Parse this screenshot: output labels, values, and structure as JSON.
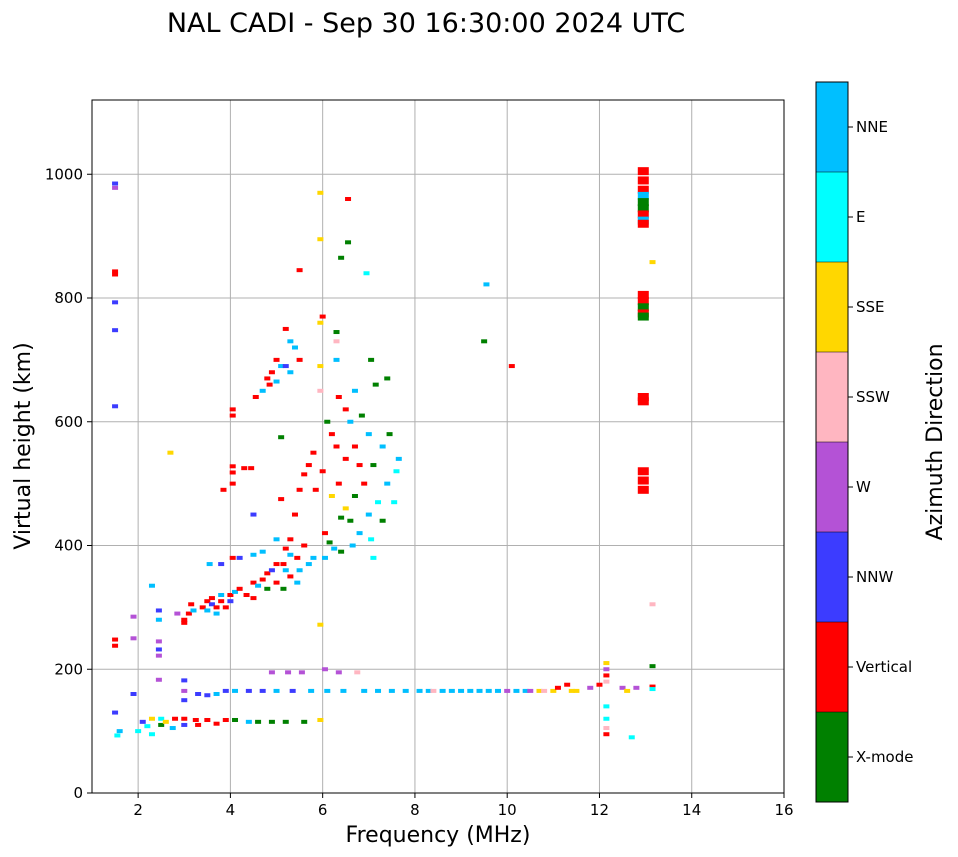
{
  "chart_data": {
    "type": "scatter",
    "title": "NAL CADI - Sep 30 16:30:00 2024 UTC",
    "xlabel": "Frequency (MHz)",
    "ylabel": "Virtual height (km)",
    "xlim": [
      1,
      16
    ],
    "ylim": [
      0,
      1120
    ],
    "xticks": [
      2,
      4,
      6,
      8,
      10,
      12,
      14,
      16
    ],
    "xtick_labels": [
      "2",
      "4",
      "6",
      "8",
      "10",
      "12",
      "14",
      "16"
    ],
    "yticks": [
      0,
      200,
      400,
      600,
      800,
      1000
    ],
    "ytick_labels": [
      "0",
      "200",
      "400",
      "600",
      "800",
      "1000"
    ],
    "grid": true,
    "colorbar": {
      "label": "Azimuth Direction",
      "categories": [
        "X-mode",
        "Vertical",
        "NNW",
        "W",
        "SSW",
        "SSE",
        "E",
        "NNE"
      ],
      "colors": [
        "#008000",
        "#ff0000",
        "#3c3cff",
        "#b452d6",
        "#ffb6c1",
        "#ffd700",
        "#00ffff",
        "#00bfff"
      ]
    },
    "points": [
      [
        1.5,
        985,
        "NNW"
      ],
      [
        1.5,
        978,
        "W"
      ],
      [
        1.5,
        843,
        "Vertical"
      ],
      [
        1.5,
        838,
        "Vertical"
      ],
      [
        1.5,
        793,
        "NNW"
      ],
      [
        1.5,
        748,
        "NNW"
      ],
      [
        1.5,
        625,
        "NNW"
      ],
      [
        1.5,
        248,
        "Vertical"
      ],
      [
        1.5,
        238,
        "Vertical"
      ],
      [
        1.5,
        130,
        "NNW"
      ],
      [
        1.6,
        100,
        "NNE"
      ],
      [
        1.55,
        93,
        "E"
      ],
      [
        1.9,
        285,
        "W"
      ],
      [
        1.9,
        250,
        "W"
      ],
      [
        1.9,
        160,
        "NNW"
      ],
      [
        2.0,
        100,
        "E"
      ],
      [
        2.1,
        115,
        "NNW"
      ],
      [
        2.2,
        108,
        "E"
      ],
      [
        2.3,
        120,
        "SSE"
      ],
      [
        2.3,
        95,
        "E"
      ],
      [
        2.3,
        335,
        "NNE"
      ],
      [
        2.45,
        295,
        "NNW"
      ],
      [
        2.45,
        280,
        "NNE"
      ],
      [
        2.45,
        245,
        "W"
      ],
      [
        2.45,
        232,
        "NNW"
      ],
      [
        2.45,
        222,
        "W"
      ],
      [
        2.45,
        183,
        "W"
      ],
      [
        2.5,
        120,
        "E"
      ],
      [
        2.5,
        110,
        "X-mode"
      ],
      [
        2.6,
        115,
        "SSE"
      ],
      [
        2.7,
        550,
        "SSE"
      ],
      [
        2.75,
        105,
        "NNE"
      ],
      [
        2.8,
        120,
        "Vertical"
      ],
      [
        2.85,
        290,
        "W"
      ],
      [
        3.0,
        280,
        "Vertical"
      ],
      [
        3.0,
        275,
        "Vertical"
      ],
      [
        3.0,
        182,
        "NNW"
      ],
      [
        3.0,
        165,
        "W"
      ],
      [
        3.0,
        150,
        "NNW"
      ],
      [
        3.0,
        120,
        "Vertical"
      ],
      [
        3.0,
        110,
        "NNW"
      ],
      [
        3.1,
        290,
        "Vertical"
      ],
      [
        3.15,
        305,
        "Vertical"
      ],
      [
        3.2,
        295,
        "NNE"
      ],
      [
        3.25,
        118,
        "Vertical"
      ],
      [
        3.3,
        110,
        "Vertical"
      ],
      [
        3.3,
        160,
        "NNW"
      ],
      [
        3.4,
        300,
        "Vertical"
      ],
      [
        3.5,
        310,
        "Vertical"
      ],
      [
        3.5,
        295,
        "NNE"
      ],
      [
        3.5,
        158,
        "NNW"
      ],
      [
        3.5,
        118,
        "Vertical"
      ],
      [
        3.55,
        370,
        "NNE"
      ],
      [
        3.6,
        315,
        "Vertical"
      ],
      [
        3.6,
        305,
        "NNW"
      ],
      [
        3.7,
        300,
        "Vertical"
      ],
      [
        3.7,
        290,
        "NNE"
      ],
      [
        3.7,
        160,
        "NNE"
      ],
      [
        3.7,
        112,
        "Vertical"
      ],
      [
        3.8,
        320,
        "NNE"
      ],
      [
        3.8,
        310,
        "Vertical"
      ],
      [
        3.8,
        370,
        "NNW"
      ],
      [
        3.85,
        490,
        "Vertical"
      ],
      [
        3.9,
        300,
        "Vertical"
      ],
      [
        3.9,
        165,
        "NNW"
      ],
      [
        3.9,
        118,
        "Vertical"
      ],
      [
        4.0,
        320,
        "Vertical"
      ],
      [
        4.0,
        310,
        "NNW"
      ],
      [
        4.05,
        620,
        "Vertical"
      ],
      [
        4.05,
        610,
        "Vertical"
      ],
      [
        4.05,
        528,
        "Vertical"
      ],
      [
        4.05,
        518,
        "Vertical"
      ],
      [
        4.05,
        500,
        "Vertical"
      ],
      [
        4.05,
        380,
        "Vertical"
      ],
      [
        4.1,
        325,
        "NNE"
      ],
      [
        4.1,
        165,
        "NNE"
      ],
      [
        4.1,
        118,
        "X-mode"
      ],
      [
        4.2,
        330,
        "Vertical"
      ],
      [
        4.2,
        380,
        "NNW"
      ],
      [
        4.3,
        525,
        "Vertical"
      ],
      [
        4.35,
        320,
        "Vertical"
      ],
      [
        4.4,
        165,
        "NNW"
      ],
      [
        4.4,
        115,
        "NNE"
      ],
      [
        4.45,
        525,
        "Vertical"
      ],
      [
        4.5,
        385,
        "NNE"
      ],
      [
        4.5,
        340,
        "Vertical"
      ],
      [
        4.5,
        315,
        "Vertical"
      ],
      [
        4.5,
        450,
        "NNW"
      ],
      [
        4.55,
        640,
        "Vertical"
      ],
      [
        4.6,
        335,
        "NNE"
      ],
      [
        4.6,
        115,
        "X-mode"
      ],
      [
        4.7,
        650,
        "NNE"
      ],
      [
        4.7,
        390,
        "NNE"
      ],
      [
        4.7,
        345,
        "Vertical"
      ],
      [
        4.7,
        165,
        "NNW"
      ],
      [
        4.8,
        670,
        "Vertical"
      ],
      [
        4.8,
        355,
        "Vertical"
      ],
      [
        4.8,
        330,
        "X-mode"
      ],
      [
        4.85,
        660,
        "Vertical"
      ],
      [
        4.9,
        680,
        "Vertical"
      ],
      [
        4.9,
        360,
        "NNW"
      ],
      [
        4.9,
        195,
        "W"
      ],
      [
        4.9,
        115,
        "X-mode"
      ],
      [
        5.0,
        700,
        "Vertical"
      ],
      [
        5.0,
        665,
        "NNE"
      ],
      [
        5.0,
        410,
        "NNE"
      ],
      [
        5.0,
        370,
        "Vertical"
      ],
      [
        5.0,
        340,
        "Vertical"
      ],
      [
        5.0,
        165,
        "NNE"
      ],
      [
        5.1,
        690,
        "NNE"
      ],
      [
        5.1,
        575,
        "X-mode"
      ],
      [
        5.1,
        475,
        "Vertical"
      ],
      [
        5.15,
        370,
        "Vertical"
      ],
      [
        5.15,
        330,
        "X-mode"
      ],
      [
        5.2,
        750,
        "Vertical"
      ],
      [
        5.2,
        690,
        "NNW"
      ],
      [
        5.2,
        395,
        "Vertical"
      ],
      [
        5.2,
        360,
        "NNE"
      ],
      [
        5.2,
        115,
        "X-mode"
      ],
      [
        5.25,
        195,
        "W"
      ],
      [
        5.3,
        730,
        "NNE"
      ],
      [
        5.3,
        680,
        "NNE"
      ],
      [
        5.3,
        410,
        "Vertical"
      ],
      [
        5.3,
        385,
        "NNE"
      ],
      [
        5.3,
        350,
        "Vertical"
      ],
      [
        5.35,
        165,
        "NNW"
      ],
      [
        5.4,
        720,
        "NNE"
      ],
      [
        5.4,
        450,
        "Vertical"
      ],
      [
        5.45,
        380,
        "Vertical"
      ],
      [
        5.45,
        340,
        "NNE"
      ],
      [
        5.5,
        700,
        "Vertical"
      ],
      [
        5.5,
        845,
        "Vertical"
      ],
      [
        5.5,
        490,
        "Vertical"
      ],
      [
        5.5,
        360,
        "NNE"
      ],
      [
        5.55,
        195,
        "W"
      ],
      [
        5.6,
        515,
        "Vertical"
      ],
      [
        5.6,
        400,
        "Vertical"
      ],
      [
        5.6,
        115,
        "X-mode"
      ],
      [
        5.7,
        530,
        "Vertical"
      ],
      [
        5.7,
        370,
        "NNE"
      ],
      [
        5.75,
        165,
        "NNE"
      ],
      [
        5.8,
        550,
        "Vertical"
      ],
      [
        5.8,
        380,
        "NNE"
      ],
      [
        5.85,
        490,
        "Vertical"
      ],
      [
        5.95,
        970,
        "SSE"
      ],
      [
        5.95,
        895,
        "SSE"
      ],
      [
        5.95,
        760,
        "SSE"
      ],
      [
        5.95,
        690,
        "SSE"
      ],
      [
        5.95,
        650,
        "SSW"
      ],
      [
        5.95,
        272,
        "SSE"
      ],
      [
        5.95,
        118,
        "SSE"
      ],
      [
        6.0,
        770,
        "Vertical"
      ],
      [
        6.0,
        520,
        "Vertical"
      ],
      [
        6.05,
        420,
        "Vertical"
      ],
      [
        6.05,
        380,
        "NNE"
      ],
      [
        6.05,
        200,
        "W"
      ],
      [
        6.1,
        165,
        "NNE"
      ],
      [
        6.1,
        600,
        "X-mode"
      ],
      [
        6.15,
        405,
        "X-mode"
      ],
      [
        6.2,
        580,
        "Vertical"
      ],
      [
        6.2,
        480,
        "SSE"
      ],
      [
        6.25,
        395,
        "NNE"
      ],
      [
        6.3,
        745,
        "X-mode"
      ],
      [
        6.3,
        730,
        "SSW"
      ],
      [
        6.3,
        700,
        "NNE"
      ],
      [
        6.3,
        560,
        "Vertical"
      ],
      [
        6.35,
        640,
        "Vertical"
      ],
      [
        6.35,
        500,
        "Vertical"
      ],
      [
        6.35,
        195,
        "W"
      ],
      [
        6.4,
        865,
        "X-mode"
      ],
      [
        6.4,
        445,
        "X-mode"
      ],
      [
        6.4,
        390,
        "X-mode"
      ],
      [
        6.45,
        165,
        "NNE"
      ],
      [
        6.5,
        620,
        "Vertical"
      ],
      [
        6.5,
        540,
        "Vertical"
      ],
      [
        6.5,
        460,
        "SSE"
      ],
      [
        6.55,
        960,
        "Vertical"
      ],
      [
        6.55,
        890,
        "X-mode"
      ],
      [
        6.6,
        600,
        "NNE"
      ],
      [
        6.6,
        440,
        "X-mode"
      ],
      [
        6.65,
        400,
        "NNE"
      ],
      [
        6.7,
        650,
        "NNE"
      ],
      [
        6.7,
        560,
        "Vertical"
      ],
      [
        6.7,
        480,
        "X-mode"
      ],
      [
        6.75,
        195,
        "SSW"
      ],
      [
        6.8,
        530,
        "Vertical"
      ],
      [
        6.8,
        420,
        "NNE"
      ],
      [
        6.85,
        610,
        "X-mode"
      ],
      [
        6.9,
        500,
        "Vertical"
      ],
      [
        6.9,
        165,
        "NNE"
      ],
      [
        6.95,
        840,
        "E"
      ],
      [
        7.0,
        580,
        "NNE"
      ],
      [
        7.0,
        450,
        "NNE"
      ],
      [
        7.05,
        700,
        "X-mode"
      ],
      [
        7.05,
        410,
        "E"
      ],
      [
        7.1,
        530,
        "X-mode"
      ],
      [
        7.1,
        380,
        "E"
      ],
      [
        7.15,
        660,
        "X-mode"
      ],
      [
        7.2,
        470,
        "E"
      ],
      [
        7.2,
        165,
        "NNE"
      ],
      [
        7.3,
        560,
        "NNE"
      ],
      [
        7.3,
        440,
        "X-mode"
      ],
      [
        7.4,
        500,
        "NNE"
      ],
      [
        7.4,
        670,
        "X-mode"
      ],
      [
        7.45,
        580,
        "X-mode"
      ],
      [
        7.5,
        165,
        "NNE"
      ],
      [
        7.55,
        470,
        "E"
      ],
      [
        7.6,
        520,
        "E"
      ],
      [
        7.65,
        540,
        "NNE"
      ],
      [
        7.8,
        165,
        "NNE"
      ],
      [
        8.1,
        165,
        "NNE"
      ],
      [
        8.3,
        165,
        "NNE"
      ],
      [
        8.4,
        165,
        "SSW"
      ],
      [
        8.6,
        165,
        "NNE"
      ],
      [
        8.8,
        165,
        "NNE"
      ],
      [
        9.0,
        165,
        "NNE"
      ],
      [
        9.2,
        165,
        "NNE"
      ],
      [
        9.4,
        165,
        "NNE"
      ],
      [
        9.6,
        165,
        "NNE"
      ],
      [
        9.55,
        822,
        "NNE"
      ],
      [
        9.5,
        730,
        "X-mode"
      ],
      [
        9.8,
        165,
        "NNE"
      ],
      [
        10.0,
        165,
        "W"
      ],
      [
        10.1,
        690,
        "Vertical"
      ],
      [
        10.2,
        165,
        "NNE"
      ],
      [
        10.4,
        165,
        "NNE"
      ],
      [
        10.5,
        165,
        "W"
      ],
      [
        10.7,
        165,
        "SSE"
      ],
      [
        10.8,
        165,
        "SSW"
      ],
      [
        11.0,
        165,
        "SSE"
      ],
      [
        11.1,
        170,
        "Vertical"
      ],
      [
        11.3,
        175,
        "Vertical"
      ],
      [
        11.4,
        165,
        "SSE"
      ],
      [
        11.5,
        165,
        "SSE"
      ],
      [
        11.8,
        170,
        "W"
      ],
      [
        12.0,
        175,
        "Vertical"
      ],
      [
        12.15,
        210,
        "SSE"
      ],
      [
        12.15,
        200,
        "W"
      ],
      [
        12.15,
        190,
        "Vertical"
      ],
      [
        12.15,
        180,
        "SSW"
      ],
      [
        12.15,
        140,
        "E"
      ],
      [
        12.15,
        120,
        "E"
      ],
      [
        12.15,
        105,
        "SSW"
      ],
      [
        12.15,
        95,
        "Vertical"
      ],
      [
        12.5,
        170,
        "W"
      ],
      [
        12.6,
        165,
        "SSE"
      ],
      [
        12.7,
        90,
        "E"
      ],
      [
        12.8,
        170,
        "W"
      ],
      [
        12.95,
        1005,
        "Vertical"
      ],
      [
        12.95,
        990,
        "Vertical"
      ],
      [
        12.95,
        975,
        "Vertical"
      ],
      [
        12.95,
        965,
        "NNE"
      ],
      [
        12.95,
        955,
        "X-mode"
      ],
      [
        12.95,
        945,
        "X-mode"
      ],
      [
        12.95,
        935,
        "Vertical"
      ],
      [
        12.95,
        925,
        "NNE"
      ],
      [
        12.95,
        920,
        "Vertical"
      ],
      [
        12.95,
        805,
        "Vertical"
      ],
      [
        12.95,
        795,
        "Vertical"
      ],
      [
        12.95,
        785,
        "X-mode"
      ],
      [
        12.95,
        775,
        "Vertical"
      ],
      [
        12.95,
        770,
        "X-mode"
      ],
      [
        12.95,
        640,
        "Vertical"
      ],
      [
        12.95,
        633,
        "Vertical"
      ],
      [
        12.95,
        520,
        "Vertical"
      ],
      [
        12.95,
        505,
        "Vertical"
      ],
      [
        12.95,
        490,
        "Vertical"
      ],
      [
        13.15,
        858,
        "SSE"
      ],
      [
        13.15,
        305,
        "SSW"
      ],
      [
        13.15,
        205,
        "X-mode"
      ],
      [
        13.15,
        172,
        "Vertical"
      ],
      [
        13.15,
        168,
        "E"
      ]
    ]
  }
}
